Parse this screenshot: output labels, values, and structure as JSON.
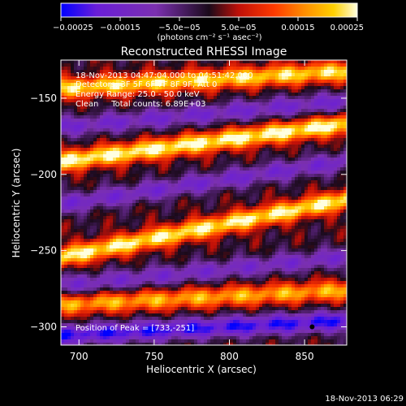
{
  "chart_data": {
    "type": "heatmap",
    "title": "Reconstructed RHESSI Image",
    "xlabel": "Heliocentric X (arcsec)",
    "ylabel": "Heliocentric Y (arcsec)",
    "xlim": [
      688,
      878
    ],
    "ylim": [
      -312,
      -125
    ],
    "x_ticks": [
      700,
      750,
      800,
      850
    ],
    "y_ticks": [
      -150,
      -200,
      -250,
      -300
    ],
    "x_tick_labels": [
      "700",
      "750",
      "800",
      "850"
    ],
    "y_tick_labels": [
      "−150",
      "−200",
      "−250",
      "−300"
    ],
    "colorbar": {
      "min": -0.00025,
      "max": 0.00025,
      "ticks": [
        -0.00025,
        -0.00015,
        -5e-05,
        5e-05,
        0.00015,
        0.00025
      ],
      "tick_labels": [
        "−0.00025",
        "−0.00015",
        "−5.0e−05",
        "5.0e−05",
        "0.00015",
        "0.00025"
      ],
      "unit_label": "(photons cm⁻² s⁻¹ asec⁻²)",
      "colors": [
        "#0000ff",
        "#6a1ed8",
        "#7b30b0",
        "#1a0a1a",
        "#c01008",
        "#ff3a00",
        "#ff8c00",
        "#ffd000",
        "#ffffe0"
      ]
    },
    "bands": [
      {
        "y_at_700": -143,
        "slope": 0.06,
        "amplitude": 0.00022
      },
      {
        "y_at_700": -168,
        "slope": 0.09,
        "amplitude": -0.00014
      },
      {
        "y_at_700": -190,
        "slope": 0.13,
        "amplitude": 0.00025
      },
      {
        "y_at_700": -218,
        "slope": 0.15,
        "amplitude": -0.00014
      },
      {
        "y_at_700": -252,
        "slope": 0.2,
        "amplitude": 0.00024
      },
      {
        "y_at_700": -272,
        "slope": 0.1,
        "amplitude": -0.00013
      },
      {
        "y_at_700": -285,
        "slope": 0.05,
        "amplitude": 0.00018
      },
      {
        "y_at_700": -305,
        "slope": 0.05,
        "amplitude": -0.00022
      }
    ],
    "annotations": [
      "18-Nov-2013 04:47:04.000 to 04:51:42.000",
      "Detectors: 3F 5F 6F 7F 8F 9F, Att 0",
      "Energy Range: 25.0 - 50.0 keV",
      "Clean     Total counts: 6.89E+03"
    ],
    "peak_label": "Position of Peak = [733,-251]",
    "peak": [
      733,
      -251
    ],
    "marker": [
      855,
      -300
    ]
  },
  "footer_timestamp": "18-Nov-2013 06:29"
}
